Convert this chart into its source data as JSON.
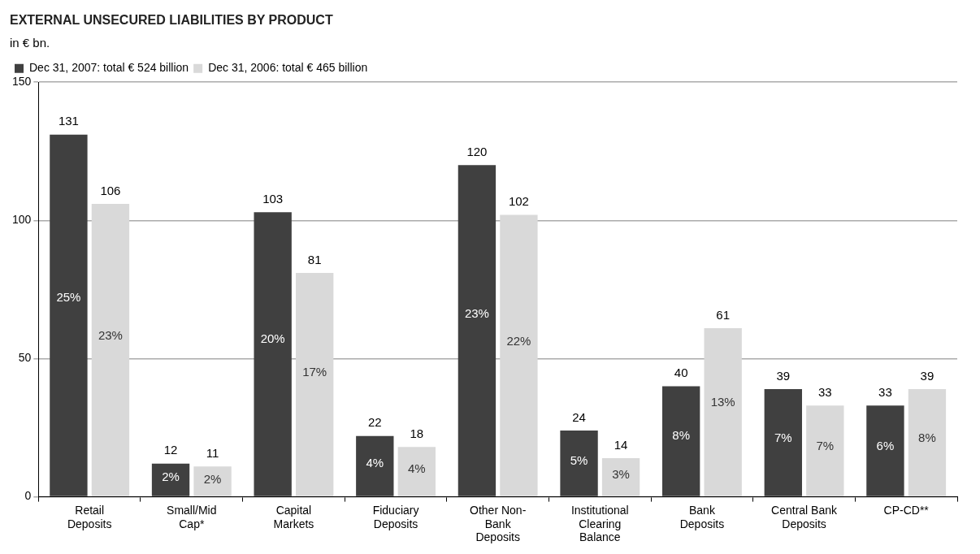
{
  "chart_data": {
    "type": "bar",
    "title": "EXTERNAL UNSECURED LIABILITIES BY PRODUCT",
    "subtitle": "in € bn.",
    "categories": [
      "Retail Deposits",
      "Small/Mid Cap*",
      "Capital Markets",
      "Fiduciary Deposits",
      "Other Non-Bank Deposits",
      "Institutional Clearing Balance",
      "Bank Deposits",
      "Central Bank Deposits",
      "CP-CD**"
    ],
    "series": [
      {
        "name": "Dec 31, 2007: total € 524 billion",
        "color": "#404040",
        "values": [
          131,
          12,
          103,
          22,
          120,
          24,
          40,
          39,
          33
        ]
      },
      {
        "name": "Dec 31, 2006: total € 465 billion",
        "color": "#d9d9d9",
        "values": [
          106,
          11,
          81,
          18,
          102,
          14,
          61,
          33,
          39
        ]
      }
    ],
    "annotations": [
      {
        "text": "25%",
        "x": "Retail Deposits",
        "y": 72
      },
      {
        "text": "23%",
        "x": "Retail Deposits",
        "y": 58
      },
      {
        "text": "2%",
        "x": "Small/Mid Cap*",
        "y": 7
      },
      {
        "text": "2%",
        "x": "Small/Mid Cap*",
        "y": 6
      },
      {
        "text": "20%",
        "x": "Capital Markets",
        "y": 57
      },
      {
        "text": "17%",
        "x": "Capital Markets",
        "y": 45
      },
      {
        "text": "4%",
        "x": "Fiduciary Deposits",
        "y": 12
      },
      {
        "text": "4%",
        "x": "Fiduciary Deposits",
        "y": 10
      },
      {
        "text": "23%",
        "x": "Other Non-Bank Deposits",
        "y": 66
      },
      {
        "text": "22%",
        "x": "Other Non-Bank Deposits",
        "y": 56
      },
      {
        "text": "5%",
        "x": "Institutional Clearing Balance",
        "y": 13
      },
      {
        "text": "3%",
        "x": "Institutional Clearing Balance",
        "y": 8
      },
      {
        "text": "8%",
        "x": "Bank Deposits",
        "y": 22
      },
      {
        "text": "13%",
        "x": "Bank Deposits",
        "y": 34
      },
      {
        "text": "7%",
        "x": "Central Bank Deposits",
        "y": 21
      },
      {
        "text": "7%",
        "x": "Central Bank Deposits",
        "y": 18
      },
      {
        "text": "6%",
        "x": "CP-CD**",
        "y": 18
      },
      {
        "text": "8%",
        "x": "CP-CD**",
        "y": 21
      }
    ],
    "ylim": [
      0,
      150
    ],
    "yticks": [
      0,
      50,
      100,
      150
    ],
    "grid": "y",
    "legend": "top left",
    "data_labels": true
  }
}
